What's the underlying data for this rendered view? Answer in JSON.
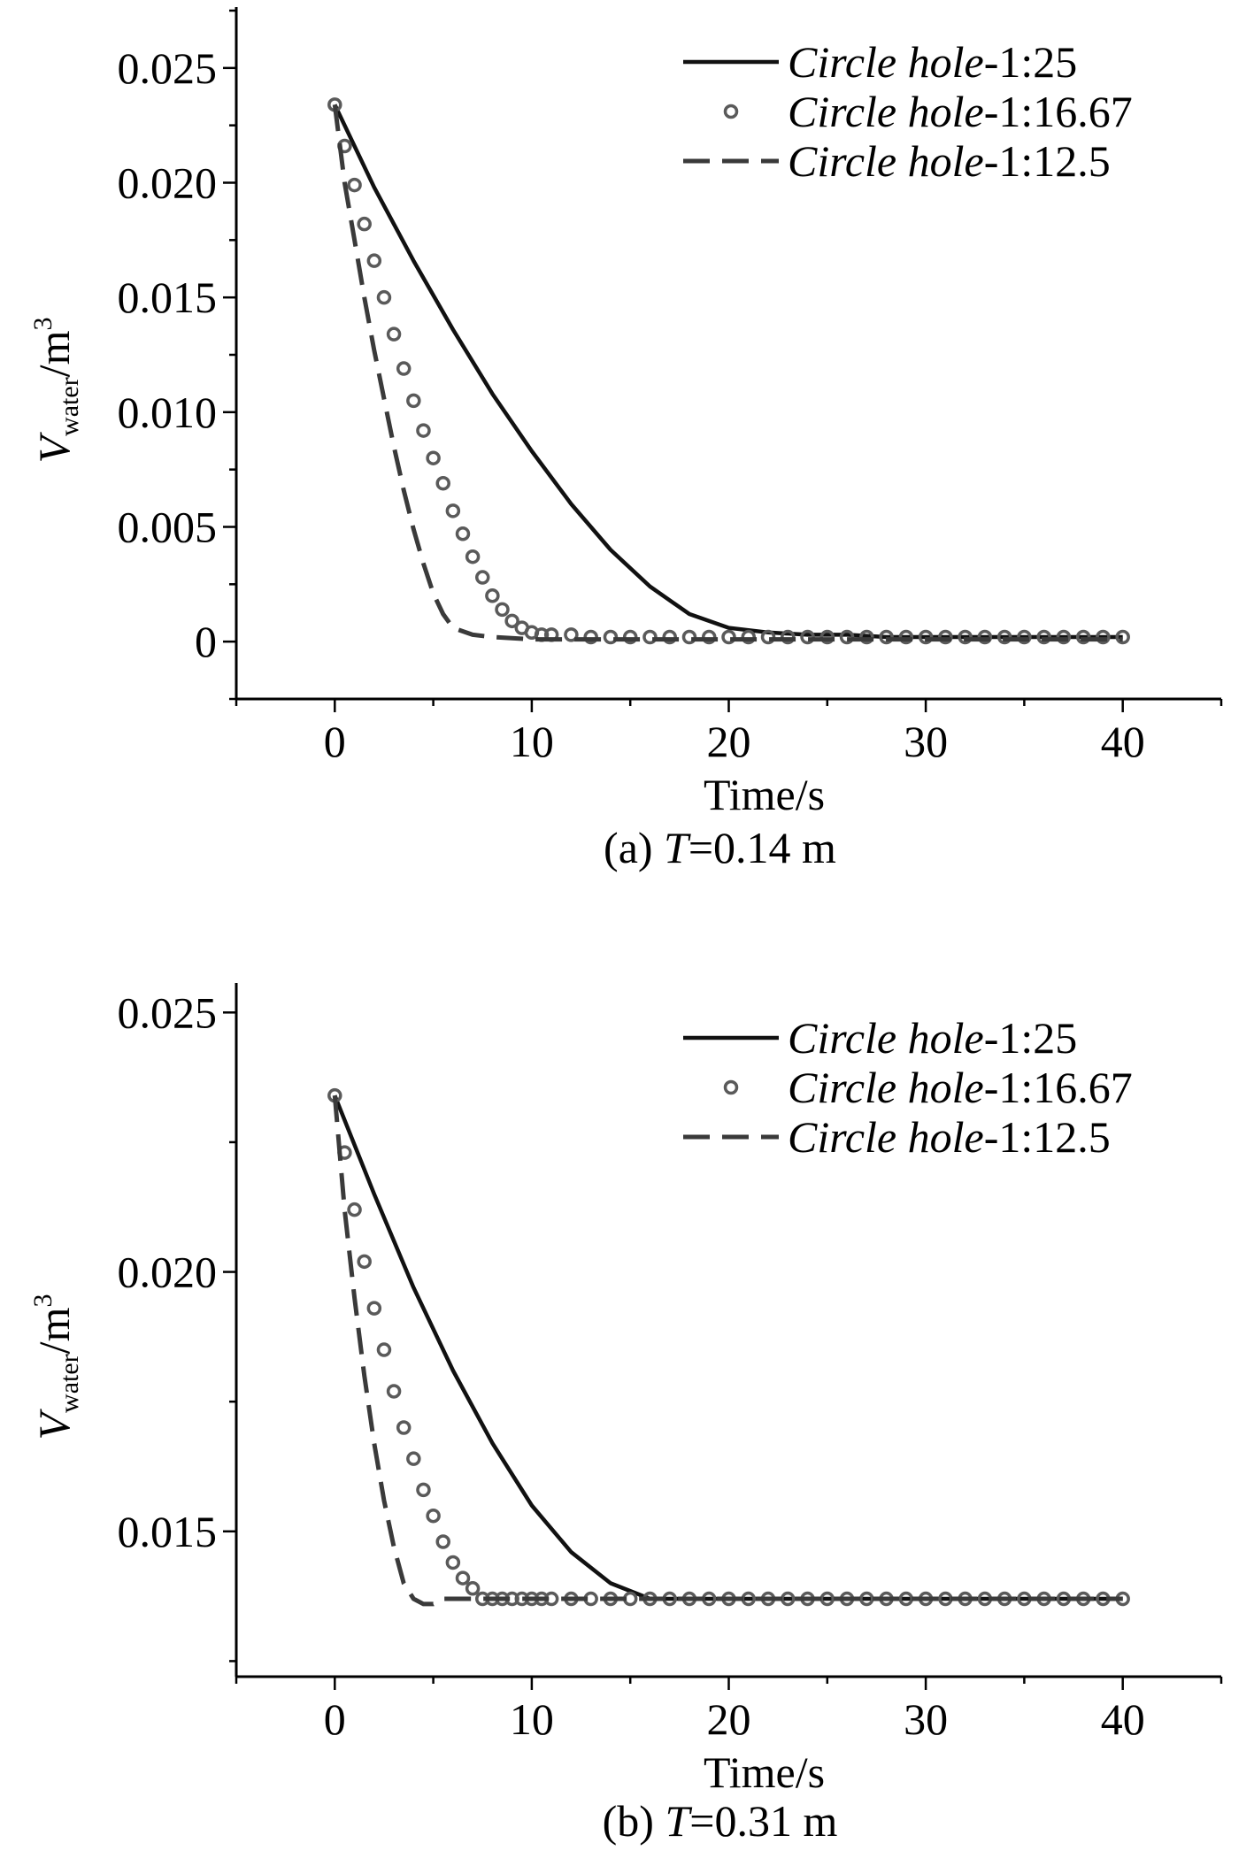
{
  "chart_data": [
    {
      "type": "line",
      "caption": {
        "prefix": "(a) ",
        "var": "T",
        "suffix": "=0.14 m"
      },
      "xlabel": "Time/s",
      "ylabel": {
        "main": "V",
        "sub": "water",
        "unit_prefix": "/m",
        "unit_sup": "3"
      },
      "xlim": [
        -5,
        45
      ],
      "ylim": [
        -0.0025,
        0.0275
      ],
      "xticks": [
        0,
        10,
        20,
        30,
        40
      ],
      "xtick_labels": [
        "0",
        "10",
        "20",
        "30",
        "40"
      ],
      "yticks": [
        0,
        0.005,
        0.01,
        0.015,
        0.02,
        0.025
      ],
      "ytick_labels": [
        "0",
        "0.005",
        "0.010",
        "0.015",
        "0.020",
        "0.025"
      ],
      "legend_position": "top-right",
      "series": [
        {
          "name_italic": "Circle hole",
          "name_suffix": "-1:25",
          "style": "solid",
          "x": [
            0,
            2,
            4,
            6,
            8,
            10,
            12,
            14,
            16,
            18,
            20,
            22,
            24,
            26,
            28,
            30,
            32,
            34,
            36,
            38,
            40
          ],
          "values": [
            0.0234,
            0.0198,
            0.0166,
            0.0136,
            0.0108,
            0.0083,
            0.006,
            0.004,
            0.0024,
            0.0012,
            0.0006,
            0.0004,
            0.0003,
            0.0003,
            0.0002,
            0.0002,
            0.0002,
            0.0002,
            0.0002,
            0.0002,
            0.0002
          ]
        },
        {
          "name_italic": "Circle hole",
          "name_suffix": "-1:16.67",
          "style": "circles",
          "x": [
            0,
            0.5,
            1,
            1.5,
            2,
            2.5,
            3,
            3.5,
            4,
            4.5,
            5,
            5.5,
            6,
            6.5,
            7,
            7.5,
            8,
            8.5,
            9,
            9.5,
            10,
            10.5,
            11,
            12,
            13,
            14,
            15,
            16,
            17,
            18,
            19,
            20,
            21,
            22,
            23,
            24,
            25,
            26,
            27,
            28,
            29,
            30,
            31,
            32,
            33,
            34,
            35,
            36,
            37,
            38,
            39,
            40
          ],
          "values": [
            0.0234,
            0.0216,
            0.0199,
            0.0182,
            0.0166,
            0.015,
            0.0134,
            0.0119,
            0.0105,
            0.0092,
            0.008,
            0.0069,
            0.0057,
            0.0047,
            0.0037,
            0.0028,
            0.002,
            0.0014,
            0.0009,
            0.0006,
            0.0004,
            0.0003,
            0.0003,
            0.0003,
            0.0002,
            0.0002,
            0.0002,
            0.0002,
            0.0002,
            0.0002,
            0.0002,
            0.0002,
            0.0002,
            0.0002,
            0.0002,
            0.0002,
            0.0002,
            0.0002,
            0.0002,
            0.0002,
            0.0002,
            0.0002,
            0.0002,
            0.0002,
            0.0002,
            0.0002,
            0.0002,
            0.0002,
            0.0002,
            0.0002,
            0.0002,
            0.0002
          ]
        },
        {
          "name_italic": "Circle hole",
          "name_suffix": "-1:12.5",
          "style": "dashed",
          "x": [
            0,
            0.5,
            1,
            1.5,
            2,
            2.5,
            3,
            3.5,
            4,
            4.5,
            5,
            5.5,
            6,
            7,
            8,
            10,
            15,
            20,
            25,
            30,
            35,
            40
          ],
          "values": [
            0.0234,
            0.02,
            0.0175,
            0.015,
            0.0127,
            0.0106,
            0.0085,
            0.0066,
            0.0049,
            0.0034,
            0.0021,
            0.0012,
            0.0006,
            0.0003,
            0.0002,
            0.0001,
            0.0001,
            0.0001,
            0.0001,
            0.0001,
            0.0001,
            0.0001
          ]
        }
      ]
    },
    {
      "type": "line",
      "caption": {
        "prefix": "(b) ",
        "var": "T",
        "suffix": "=0.31 m"
      },
      "xlabel": "Time/s",
      "ylabel": {
        "main": "V",
        "sub": "water",
        "unit_prefix": "/m",
        "unit_sup": "3"
      },
      "xlim": [
        -5,
        45
      ],
      "ylim": [
        0.0122,
        0.0255
      ],
      "xticks": [
        0,
        10,
        20,
        30,
        40
      ],
      "xtick_labels": [
        "0",
        "10",
        "20",
        "30",
        "40"
      ],
      "yticks": [
        0.015,
        0.02,
        0.025
      ],
      "ytick_labels": [
        "0.015",
        "0.020",
        "0.025"
      ],
      "legend_position": "top-right",
      "series": [
        {
          "name_italic": "Circle hole",
          "name_suffix": "-1:25",
          "style": "solid",
          "x": [
            0,
            2,
            4,
            6,
            8,
            10,
            12,
            14,
            16,
            17,
            18,
            20,
            25,
            30,
            35,
            40
          ],
          "values": [
            0.0234,
            0.0215,
            0.0197,
            0.0181,
            0.0167,
            0.0155,
            0.0146,
            0.014,
            0.0137,
            0.0137,
            0.0137,
            0.0137,
            0.0137,
            0.0137,
            0.0137,
            0.0137
          ]
        },
        {
          "name_italic": "Circle hole",
          "name_suffix": "-1:16.67",
          "style": "circles",
          "x": [
            0,
            0.5,
            1,
            1.5,
            2,
            2.5,
            3,
            3.5,
            4,
            4.5,
            5,
            5.5,
            6,
            6.5,
            7,
            7.5,
            8,
            8.5,
            9,
            9.5,
            10,
            10.5,
            11,
            12,
            13,
            14,
            15,
            16,
            17,
            18,
            19,
            20,
            21,
            22,
            23,
            24,
            25,
            26,
            27,
            28,
            29,
            30,
            31,
            32,
            33,
            34,
            35,
            36,
            37,
            38,
            39,
            40
          ],
          "values": [
            0.0234,
            0.0223,
            0.0212,
            0.0202,
            0.0193,
            0.0185,
            0.0177,
            0.017,
            0.0164,
            0.0158,
            0.0153,
            0.0148,
            0.0144,
            0.0141,
            0.0139,
            0.0137,
            0.0137,
            0.0137,
            0.0137,
            0.0137,
            0.0137,
            0.0137,
            0.0137,
            0.0137,
            0.0137,
            0.0137,
            0.0137,
            0.0137,
            0.0137,
            0.0137,
            0.0137,
            0.0137,
            0.0137,
            0.0137,
            0.0137,
            0.0137,
            0.0137,
            0.0137,
            0.0137,
            0.0137,
            0.0137,
            0.0137,
            0.0137,
            0.0137,
            0.0137,
            0.0137,
            0.0137,
            0.0137,
            0.0137,
            0.0137,
            0.0137,
            0.0137
          ]
        },
        {
          "name_italic": "Circle hole",
          "name_suffix": "-1:12.5",
          "style": "dashed",
          "x": [
            0,
            0.5,
            1,
            1.5,
            2,
            2.5,
            3,
            3.5,
            4,
            4.5,
            5,
            5.5,
            6,
            8,
            10,
            15,
            20,
            25,
            30,
            35,
            40
          ],
          "values": [
            0.0234,
            0.0212,
            0.0195,
            0.018,
            0.0167,
            0.0156,
            0.0147,
            0.014,
            0.0137,
            0.0136,
            0.0136,
            0.0137,
            0.0137,
            0.0137,
            0.0137,
            0.0137,
            0.0137,
            0.0137,
            0.0137,
            0.0137,
            0.0137
          ]
        }
      ]
    }
  ]
}
